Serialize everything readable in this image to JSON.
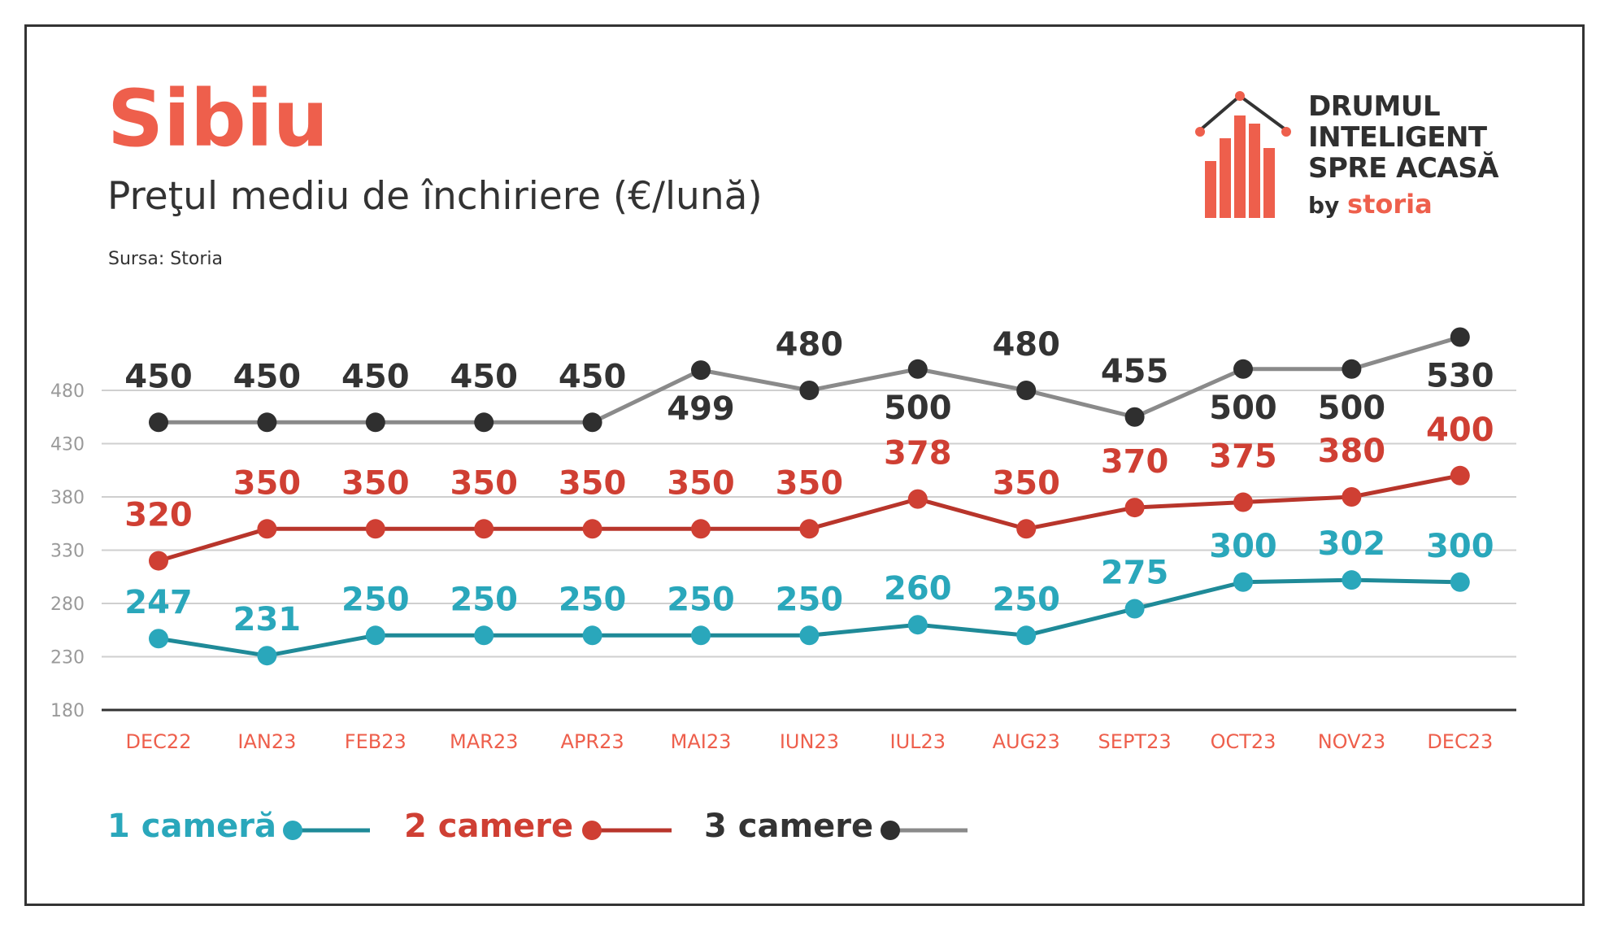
{
  "header": {
    "title": "Sibiu",
    "subtitle": "Preţul mediu de închiriere (€/lună)",
    "source": "Sursa: Storia"
  },
  "logo": {
    "lines": [
      "DRUMUL",
      "INTELIGENT",
      "SPRE ACASĂ"
    ],
    "by": "by",
    "brand": "storia"
  },
  "colors": {
    "title": "#ee5f4c",
    "axis_tick": "#ee5f4c",
    "grid": "#cfcfcf",
    "axis": "#333333",
    "ytick": "#9a9a9a"
  },
  "chart_data": {
    "type": "line",
    "categories": [
      "DEC22",
      "IAN23",
      "FEB23",
      "MAR23",
      "APR23",
      "MAI23",
      "IUN23",
      "IUL23",
      "AUG23",
      "SEPT23",
      "OCT23",
      "NOV23",
      "DEC23"
    ],
    "yticks": [
      180,
      230,
      280,
      330,
      380,
      430,
      480
    ],
    "ylim": [
      180,
      480
    ],
    "grid": true,
    "legend_position": "bottom-left",
    "series": [
      {
        "name": "1 cameră",
        "values": [
          247,
          231,
          250,
          250,
          250,
          250,
          250,
          260,
          250,
          275,
          300,
          302,
          300
        ],
        "label_color": "#2aa7bb",
        "line_color": "#1f8a98"
      },
      {
        "name": "2 camere",
        "values": [
          320,
          350,
          350,
          350,
          350,
          350,
          350,
          378,
          350,
          370,
          375,
          380,
          400
        ],
        "label_color": "#cf3f33",
        "line_color": "#b8352b"
      },
      {
        "name": "3 camere",
        "values": [
          450,
          450,
          450,
          450,
          450,
          499,
          480,
          500,
          480,
          455,
          500,
          500,
          530
        ],
        "label_color": "#333333",
        "line_color": "#8a8a8a"
      }
    ]
  }
}
